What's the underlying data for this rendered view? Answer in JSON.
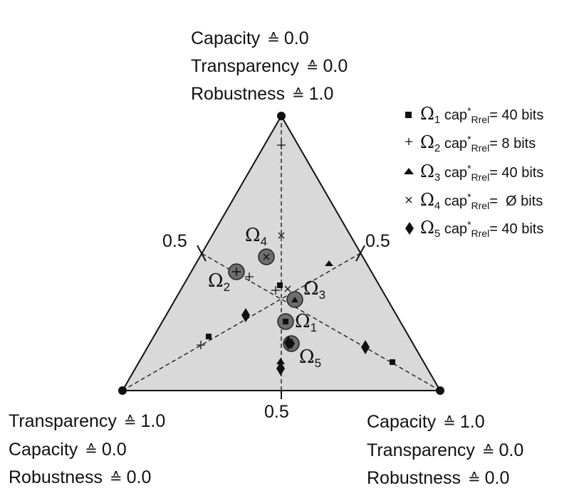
{
  "corners": {
    "top": [
      {
        "name": "Capacity",
        "value": "0.0"
      },
      {
        "name": "Transparency",
        "value": "0.0"
      },
      {
        "name": "Robustness",
        "value": "1.0"
      }
    ],
    "left": [
      {
        "name": "Transparency",
        "value": "1.0"
      },
      {
        "name": "Capacity",
        "value": "0.0"
      },
      {
        "name": "Robustness",
        "value": "0.0"
      }
    ],
    "right": [
      {
        "name": "Capacity",
        "value": "1.0"
      },
      {
        "name": "Transparency",
        "value": "0.0"
      },
      {
        "name": "Robustness",
        "value": "0.0"
      }
    ]
  },
  "symbol": "≙",
  "midpoint_labels": {
    "left": "0.5",
    "right": "0.5",
    "bottom": "0.5"
  },
  "legend": [
    {
      "marker": "square",
      "omega": "Ω",
      "sub": "1",
      "cap": "cap",
      "star": "*",
      "rel": "Rrel",
      "value": "= 40 bits"
    },
    {
      "marker": "plus",
      "omega": "Ω",
      "sub": "2",
      "cap": "cap",
      "star": "*",
      "rel": "Rrel",
      "value": "= 8 bits"
    },
    {
      "marker": "triangle",
      "omega": "Ω",
      "sub": "3",
      "cap": "cap",
      "star": "*",
      "rel": "Rrel",
      "value": "= 40 bits"
    },
    {
      "marker": "cross",
      "omega": "Ω",
      "sub": "4",
      "cap": "cap",
      "star": "*",
      "rel": "Rrel",
      "value": "=  Ø bits"
    },
    {
      "marker": "diamond",
      "omega": "Ω",
      "sub": "5",
      "cap": "cap",
      "star": "*",
      "rel": "Rrel",
      "value": "= 40 bits"
    }
  ],
  "mean_labels": [
    {
      "omega": "Ω",
      "sub": "4"
    },
    {
      "omega": "Ω",
      "sub": "2"
    },
    {
      "omega": "Ω",
      "sub": "3"
    },
    {
      "omega": "Ω",
      "sub": "1"
    },
    {
      "omega": "Ω",
      "sub": "5"
    }
  ],
  "colors": {
    "triangle_fill": "#d9d9d9",
    "mean_circle": "#6e6e6e",
    "ink": "#111111"
  }
}
